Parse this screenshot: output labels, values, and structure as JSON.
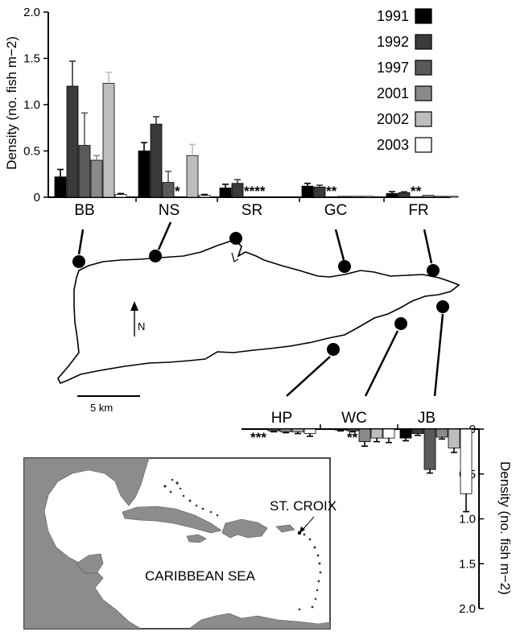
{
  "colors": {
    "1991": "#000000",
    "1992": "#3a3a3a",
    "1997": "#5a5a5a",
    "2001": "#8a8a8a",
    "2002": "#bdbdbd",
    "2003": "#ffffff",
    "land": "#8c8c8c"
  },
  "chart_data": [
    {
      "type": "bar",
      "ylabel": "Density (no. fish m−2)",
      "ylim": [
        0,
        2.0
      ],
      "yticks": [
        "0",
        "0.5",
        "1.0",
        "1.5",
        "2.0"
      ],
      "categories": [
        "BB",
        "NS",
        "SR",
        "GC",
        "FR"
      ],
      "legend": [
        "1991",
        "1992",
        "1997",
        "2001",
        "2002",
        "2003"
      ],
      "series": [
        {
          "name": "1991",
          "values": [
            0.22,
            0.5,
            0.1,
            0.12,
            0.04
          ],
          "errors": [
            0.08,
            0.09,
            0.04,
            0.03,
            0.02
          ]
        },
        {
          "name": "1992",
          "values": [
            1.2,
            0.79,
            0.15,
            0.11,
            0.05
          ],
          "errors": [
            0.27,
            0.08,
            0.04,
            0.02,
            0.01
          ]
        },
        {
          "name": "1997",
          "values": [
            0.56,
            0.16,
            null,
            null,
            null
          ],
          "errors": [
            0.35,
            0.12,
            null,
            null,
            null
          ]
        },
        {
          "name": "2001",
          "values": [
            0.4,
            null,
            null,
            0.01,
            0.02
          ],
          "errors": [
            0.05,
            null,
            null,
            0.0,
            0.0
          ]
        },
        {
          "name": "2002",
          "values": [
            1.23,
            0.45,
            null,
            0.01,
            0.01
          ],
          "errors": [
            0.12,
            0.12,
            null,
            0.0,
            0.0
          ]
        },
        {
          "name": "2003",
          "values": [
            0.03,
            0.02,
            null,
            0.01,
            0.01
          ],
          "errors": [
            0.01,
            0.01,
            null,
            0.0,
            0.0
          ]
        }
      ],
      "asterisks": [
        "",
        "*",
        "****",
        "**",
        "**"
      ]
    },
    {
      "type": "bar",
      "orientation": "inverted",
      "ylabel": "Density (no. fish m−2)",
      "ylim": [
        0,
        2.0
      ],
      "yticks": [
        "0",
        "0.5",
        "1.0",
        "1.5",
        "2.0"
      ],
      "categories": [
        "HP",
        "WC",
        "JB"
      ],
      "series": [
        {
          "name": "1991",
          "values": [
            null,
            null,
            0.1
          ],
          "errors": [
            null,
            null,
            0.03
          ]
        },
        {
          "name": "1992",
          "values": [
            null,
            0.01,
            0.05
          ],
          "errors": [
            null,
            0.01,
            0.02
          ]
        },
        {
          "name": "1997",
          "values": [
            0.02,
            0.02,
            0.45
          ],
          "errors": [
            0.01,
            0.01,
            0.04
          ]
        },
        {
          "name": "2001",
          "values": [
            0.03,
            0.14,
            0.09
          ],
          "errors": [
            0.01,
            0.05,
            0.02
          ]
        },
        {
          "name": "2002",
          "values": [
            0.03,
            0.1,
            0.21
          ],
          "errors": [
            0.02,
            0.04,
            0.05
          ]
        },
        {
          "name": "2003",
          "values": [
            0.05,
            0.1,
            0.72
          ],
          "errors": [
            0.03,
            0.05,
            0.2
          ]
        }
      ],
      "asterisks": [
        "***",
        "**",
        ""
      ]
    }
  ],
  "map": {
    "north_label": "N",
    "scale_label": "5 km",
    "inset_labels": {
      "island": "ST. CROIX",
      "sea": "CARIBBEAN SEA"
    }
  }
}
